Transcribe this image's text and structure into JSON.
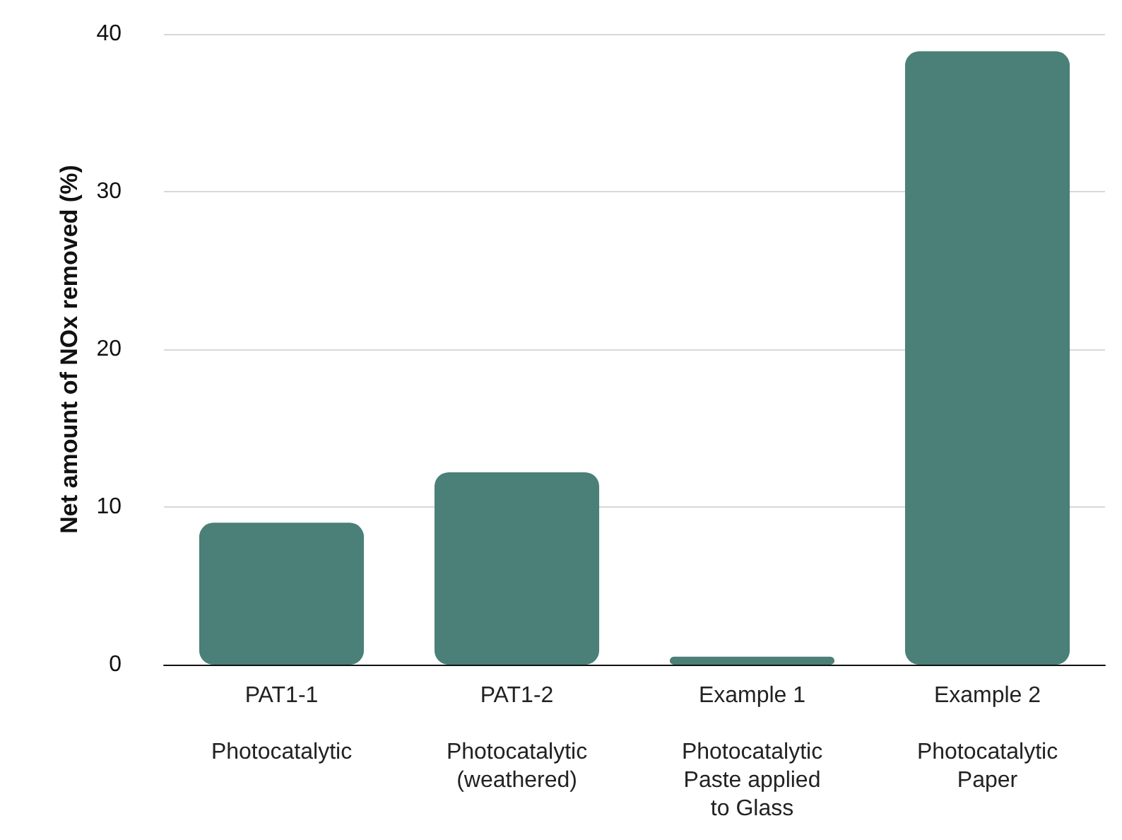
{
  "chart_data": {
    "type": "bar",
    "ylabel": "Net amount of NOx removed (%)",
    "categories": [
      "PAT1-1\n\nPhotocatalytic",
      "PAT1-2\n\nPhotocatalytic\n(weathered)",
      "Example 1\n\nPhotocatalytic\nPaste applied\nto Glass",
      "Example 2\n\nPhotocatalytic\nPaper"
    ],
    "values": [
      9,
      12.2,
      0.5,
      38.9
    ],
    "color": "#4a8078",
    "ylim": [
      0,
      40
    ],
    "yticks": [
      0,
      10,
      20,
      30,
      40
    ],
    "grid": "y"
  }
}
